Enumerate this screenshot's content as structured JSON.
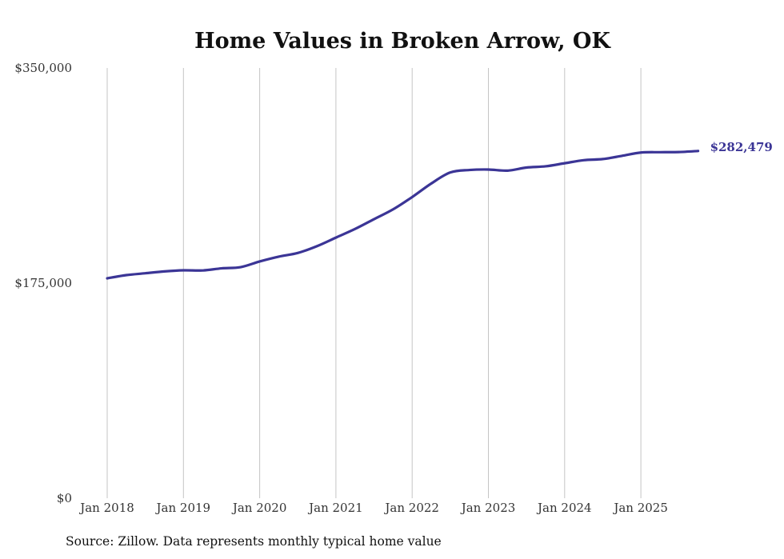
{
  "chart_data": {
    "type": "line",
    "title": "Home Values in Broken Arrow, OK",
    "xlabel": "",
    "ylabel": "",
    "ylim": [
      0,
      350000
    ],
    "y_ticks": [
      0,
      175000,
      350000
    ],
    "y_tick_labels": [
      "$0",
      "$175,000",
      "$350,000"
    ],
    "x_tick_labels": [
      "Jan 2018",
      "Jan 2019",
      "Jan 2020",
      "Jan 2021",
      "Jan 2022",
      "Jan 2023",
      "Jan 2024",
      "Jan 2025"
    ],
    "x_tick_years": [
      2018,
      2019,
      2020,
      2021,
      2022,
      2023,
      2024,
      2025
    ],
    "xlim": [
      2018,
      2026.1
    ],
    "grid": "vertical",
    "line_color": "#3b3596",
    "series": [
      {
        "name": "Typical home value",
        "x": [
          2018.0,
          2018.25,
          2018.5,
          2018.75,
          2019.0,
          2019.25,
          2019.5,
          2019.75,
          2020.0,
          2020.25,
          2020.5,
          2020.75,
          2021.0,
          2021.25,
          2021.5,
          2021.75,
          2022.0,
          2022.25,
          2022.5,
          2022.75,
          2023.0,
          2023.25,
          2023.5,
          2023.75,
          2024.0,
          2024.25,
          2024.5,
          2024.75,
          2025.0,
          2025.25,
          2025.5,
          2025.75
        ],
        "values": [
          178900,
          181500,
          183000,
          184500,
          185400,
          185300,
          187000,
          188000,
          192600,
          196500,
          199500,
          205000,
          212000,
          219000,
          227000,
          235000,
          245000,
          256000,
          265000,
          267000,
          267400,
          266500,
          269000,
          270000,
          272500,
          275000,
          275900,
          278500,
          281200,
          281500,
          281600,
          282479
        ]
      }
    ],
    "end_label": "$282,479"
  },
  "source_note": "Source: Zillow. Data represents monthly typical home value"
}
